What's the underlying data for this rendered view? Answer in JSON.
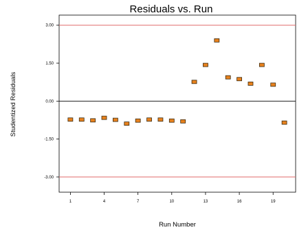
{
  "chart_data": {
    "type": "scatter",
    "title": "Residuals vs. Run",
    "xlabel": "Run Number",
    "ylabel": "Studentized Residuals",
    "xlim": [
      0,
      21
    ],
    "ylim": [
      -3.6,
      3.4
    ],
    "x_ticks": [
      1,
      4,
      7,
      10,
      13,
      16,
      19
    ],
    "x_tick_labels": [
      "1",
      "4",
      "7",
      "10",
      "13",
      "16",
      "19"
    ],
    "y_ticks": [
      3.0,
      1.5,
      0.0,
      -1.5,
      -3.0
    ],
    "y_tick_labels": [
      "3.00",
      "1.50",
      "0.00",
      "-1.50",
      "-3.00"
    ],
    "reference_lines": {
      "upper_limit": 3.0,
      "lower_limit": -3.0,
      "limit_color": "#e06a6a",
      "zero": 0.0,
      "zero_color": "#000000"
    },
    "marker_color": "#e8821e",
    "marker_edge_color": "#3a2a10",
    "grid": false,
    "points": [
      {
        "x": 1,
        "y": -0.73
      },
      {
        "x": 2,
        "y": -0.73
      },
      {
        "x": 3,
        "y": -0.76
      },
      {
        "x": 4,
        "y": -0.66
      },
      {
        "x": 5,
        "y": -0.74
      },
      {
        "x": 6,
        "y": -0.89
      },
      {
        "x": 7,
        "y": -0.77
      },
      {
        "x": 8,
        "y": -0.73
      },
      {
        "x": 9,
        "y": -0.73
      },
      {
        "x": 10,
        "y": -0.77
      },
      {
        "x": 11,
        "y": -0.8
      },
      {
        "x": 12,
        "y": 0.76
      },
      {
        "x": 13,
        "y": 1.43
      },
      {
        "x": 14,
        "y": 2.4
      },
      {
        "x": 15,
        "y": 0.94
      },
      {
        "x": 16,
        "y": 0.87
      },
      {
        "x": 17,
        "y": 0.69
      },
      {
        "x": 18,
        "y": 1.43
      },
      {
        "x": 19,
        "y": 0.65
      },
      {
        "x": 20,
        "y": -0.85
      }
    ]
  }
}
